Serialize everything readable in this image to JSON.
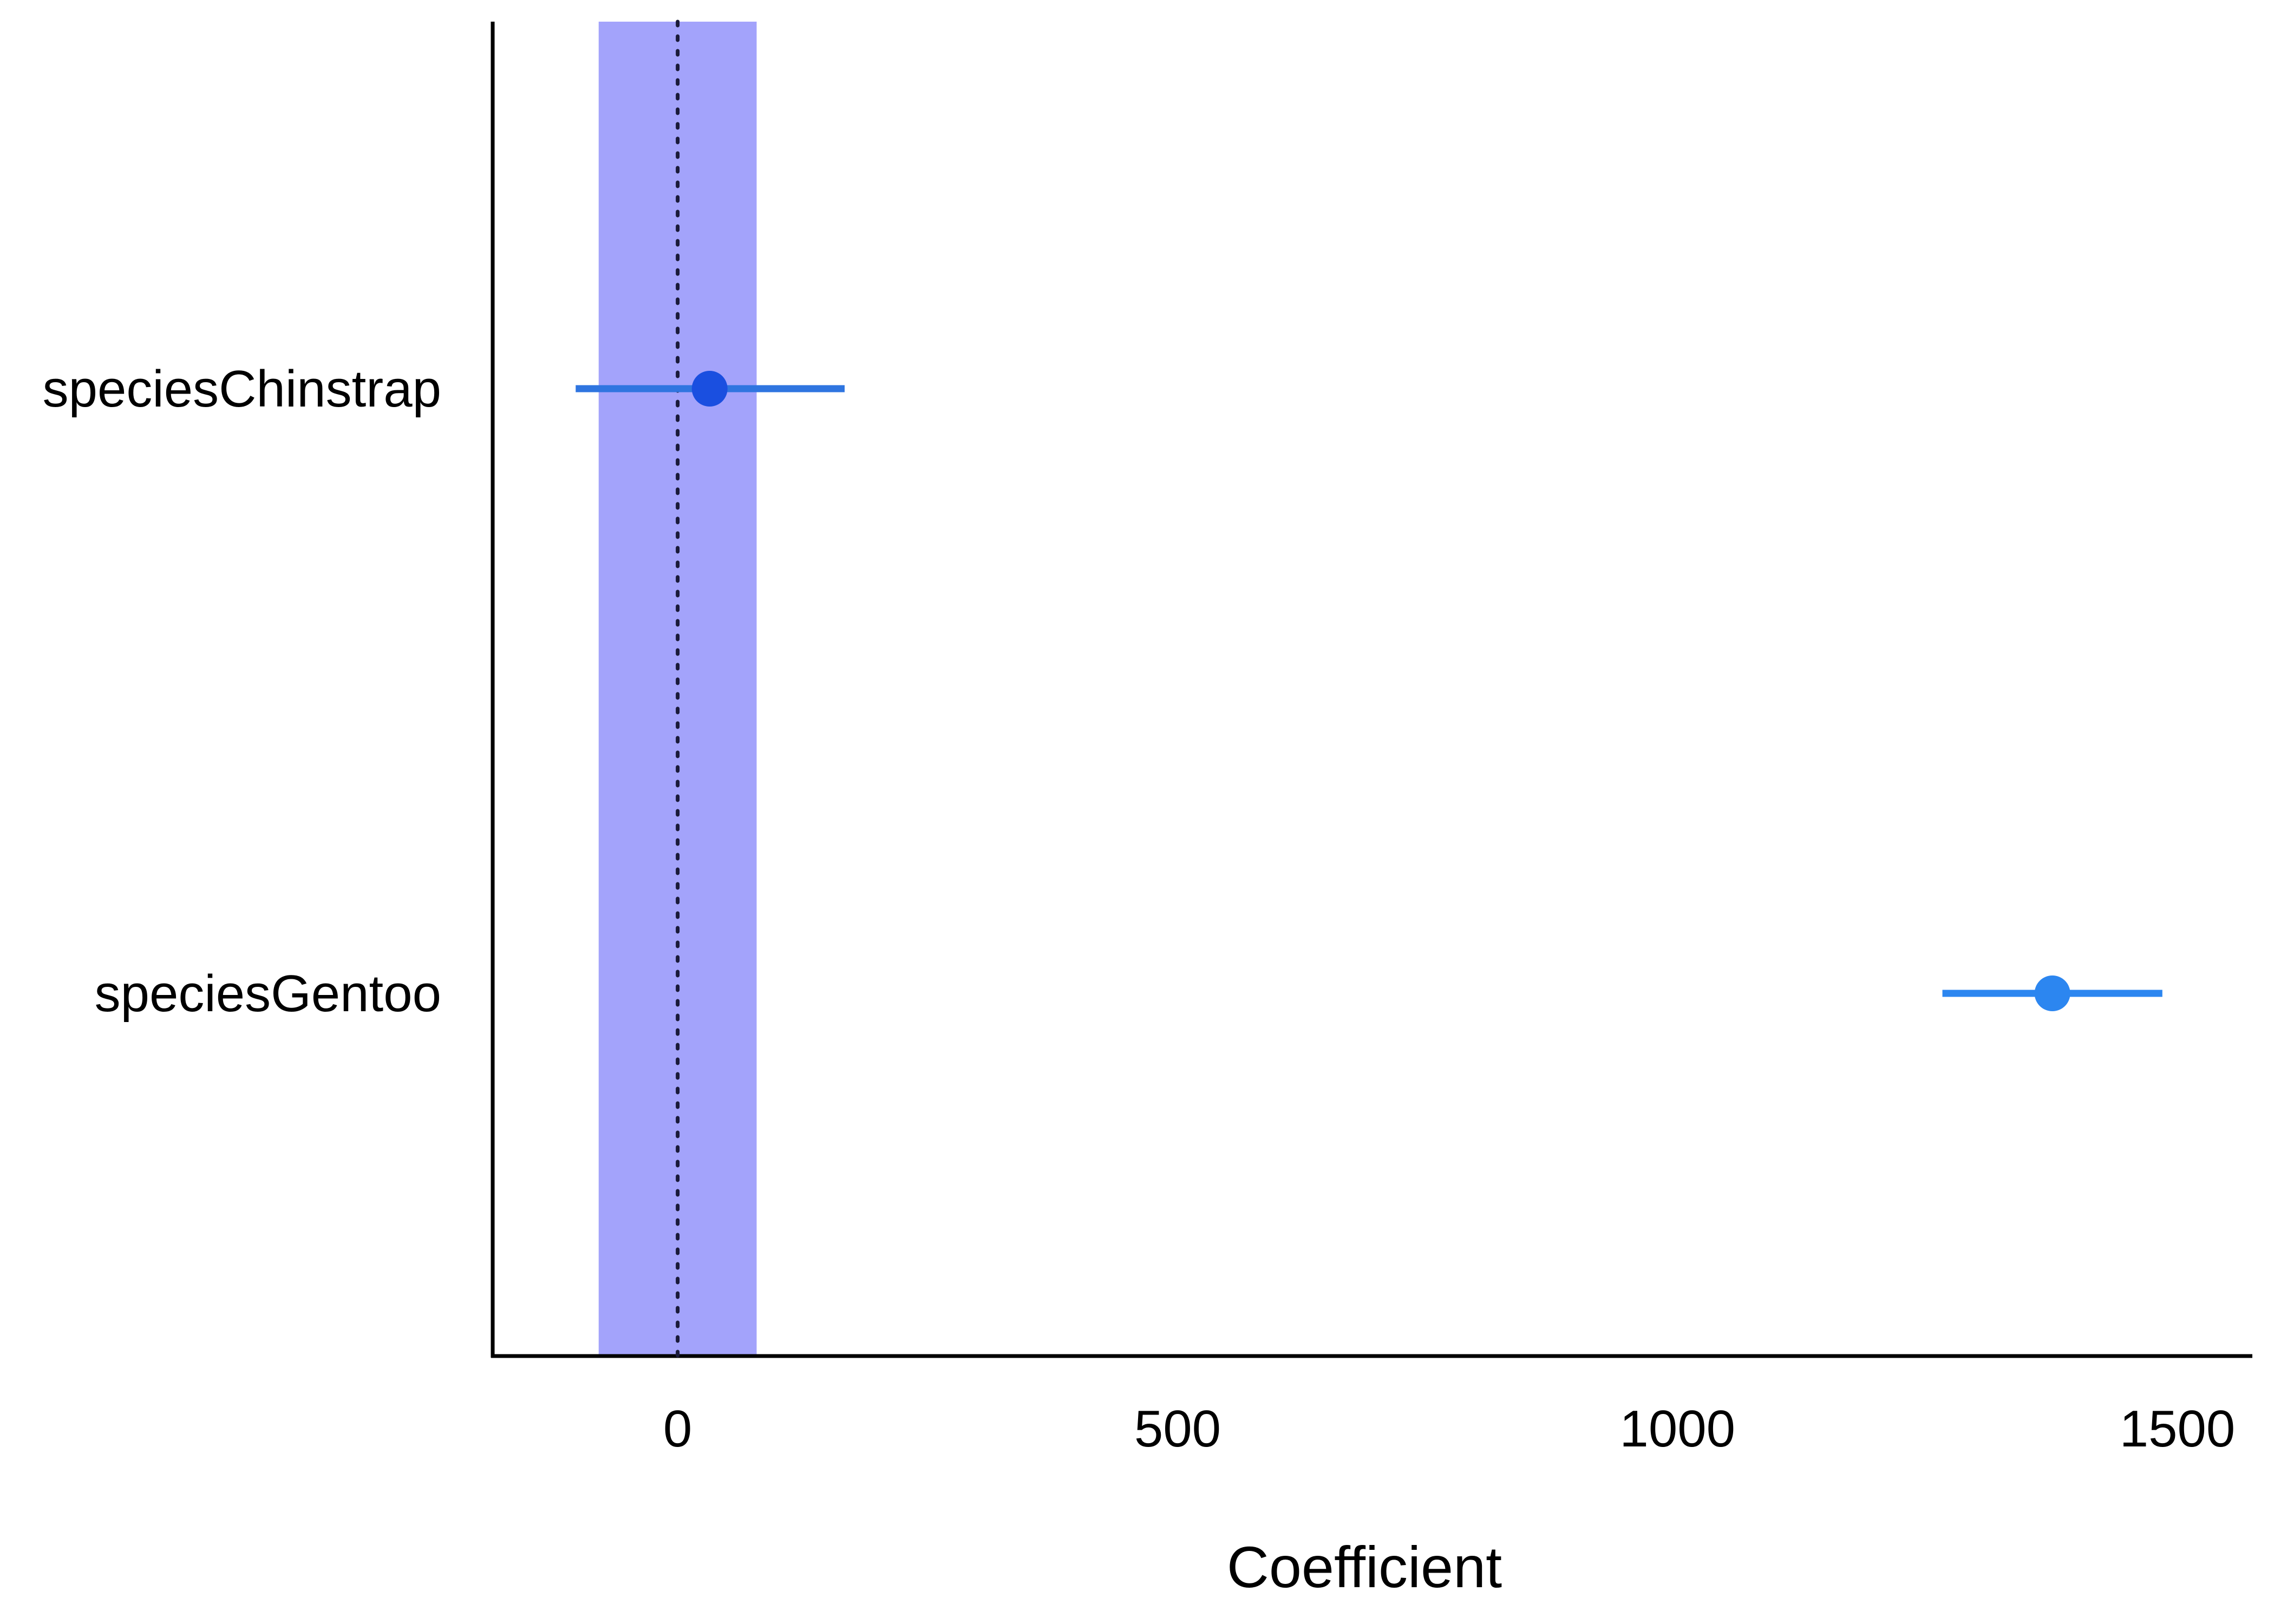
{
  "chart_data": {
    "type": "scatter",
    "subtype": "coefficient-plot",
    "title": "",
    "xlabel": "Coefficient",
    "ylabel": "",
    "xlim": [
      -185,
      1575
    ],
    "xticks": [
      0,
      500,
      1000,
      1500
    ],
    "xtick_labels": [
      "0",
      "500",
      "1000",
      "1500"
    ],
    "grid": false,
    "reference_line": {
      "x": 0,
      "style": "dotted"
    },
    "reference_band": {
      "xmin": -79,
      "xmax": 79,
      "color": "#a3a3fb"
    },
    "categories": [
      "speciesChinstrap",
      "speciesGentoo"
    ],
    "points": [
      {
        "term": "speciesChinstrap",
        "estimate": 32,
        "conf_low": -102,
        "conf_high": 167,
        "color": "#1a4fe0",
        "line_color": "#2f75e0"
      },
      {
        "term": "speciesGentoo",
        "estimate": 1375,
        "conf_low": 1265,
        "conf_high": 1485,
        "color": "#2c86f0",
        "line_color": "#2c86f0"
      }
    ]
  }
}
